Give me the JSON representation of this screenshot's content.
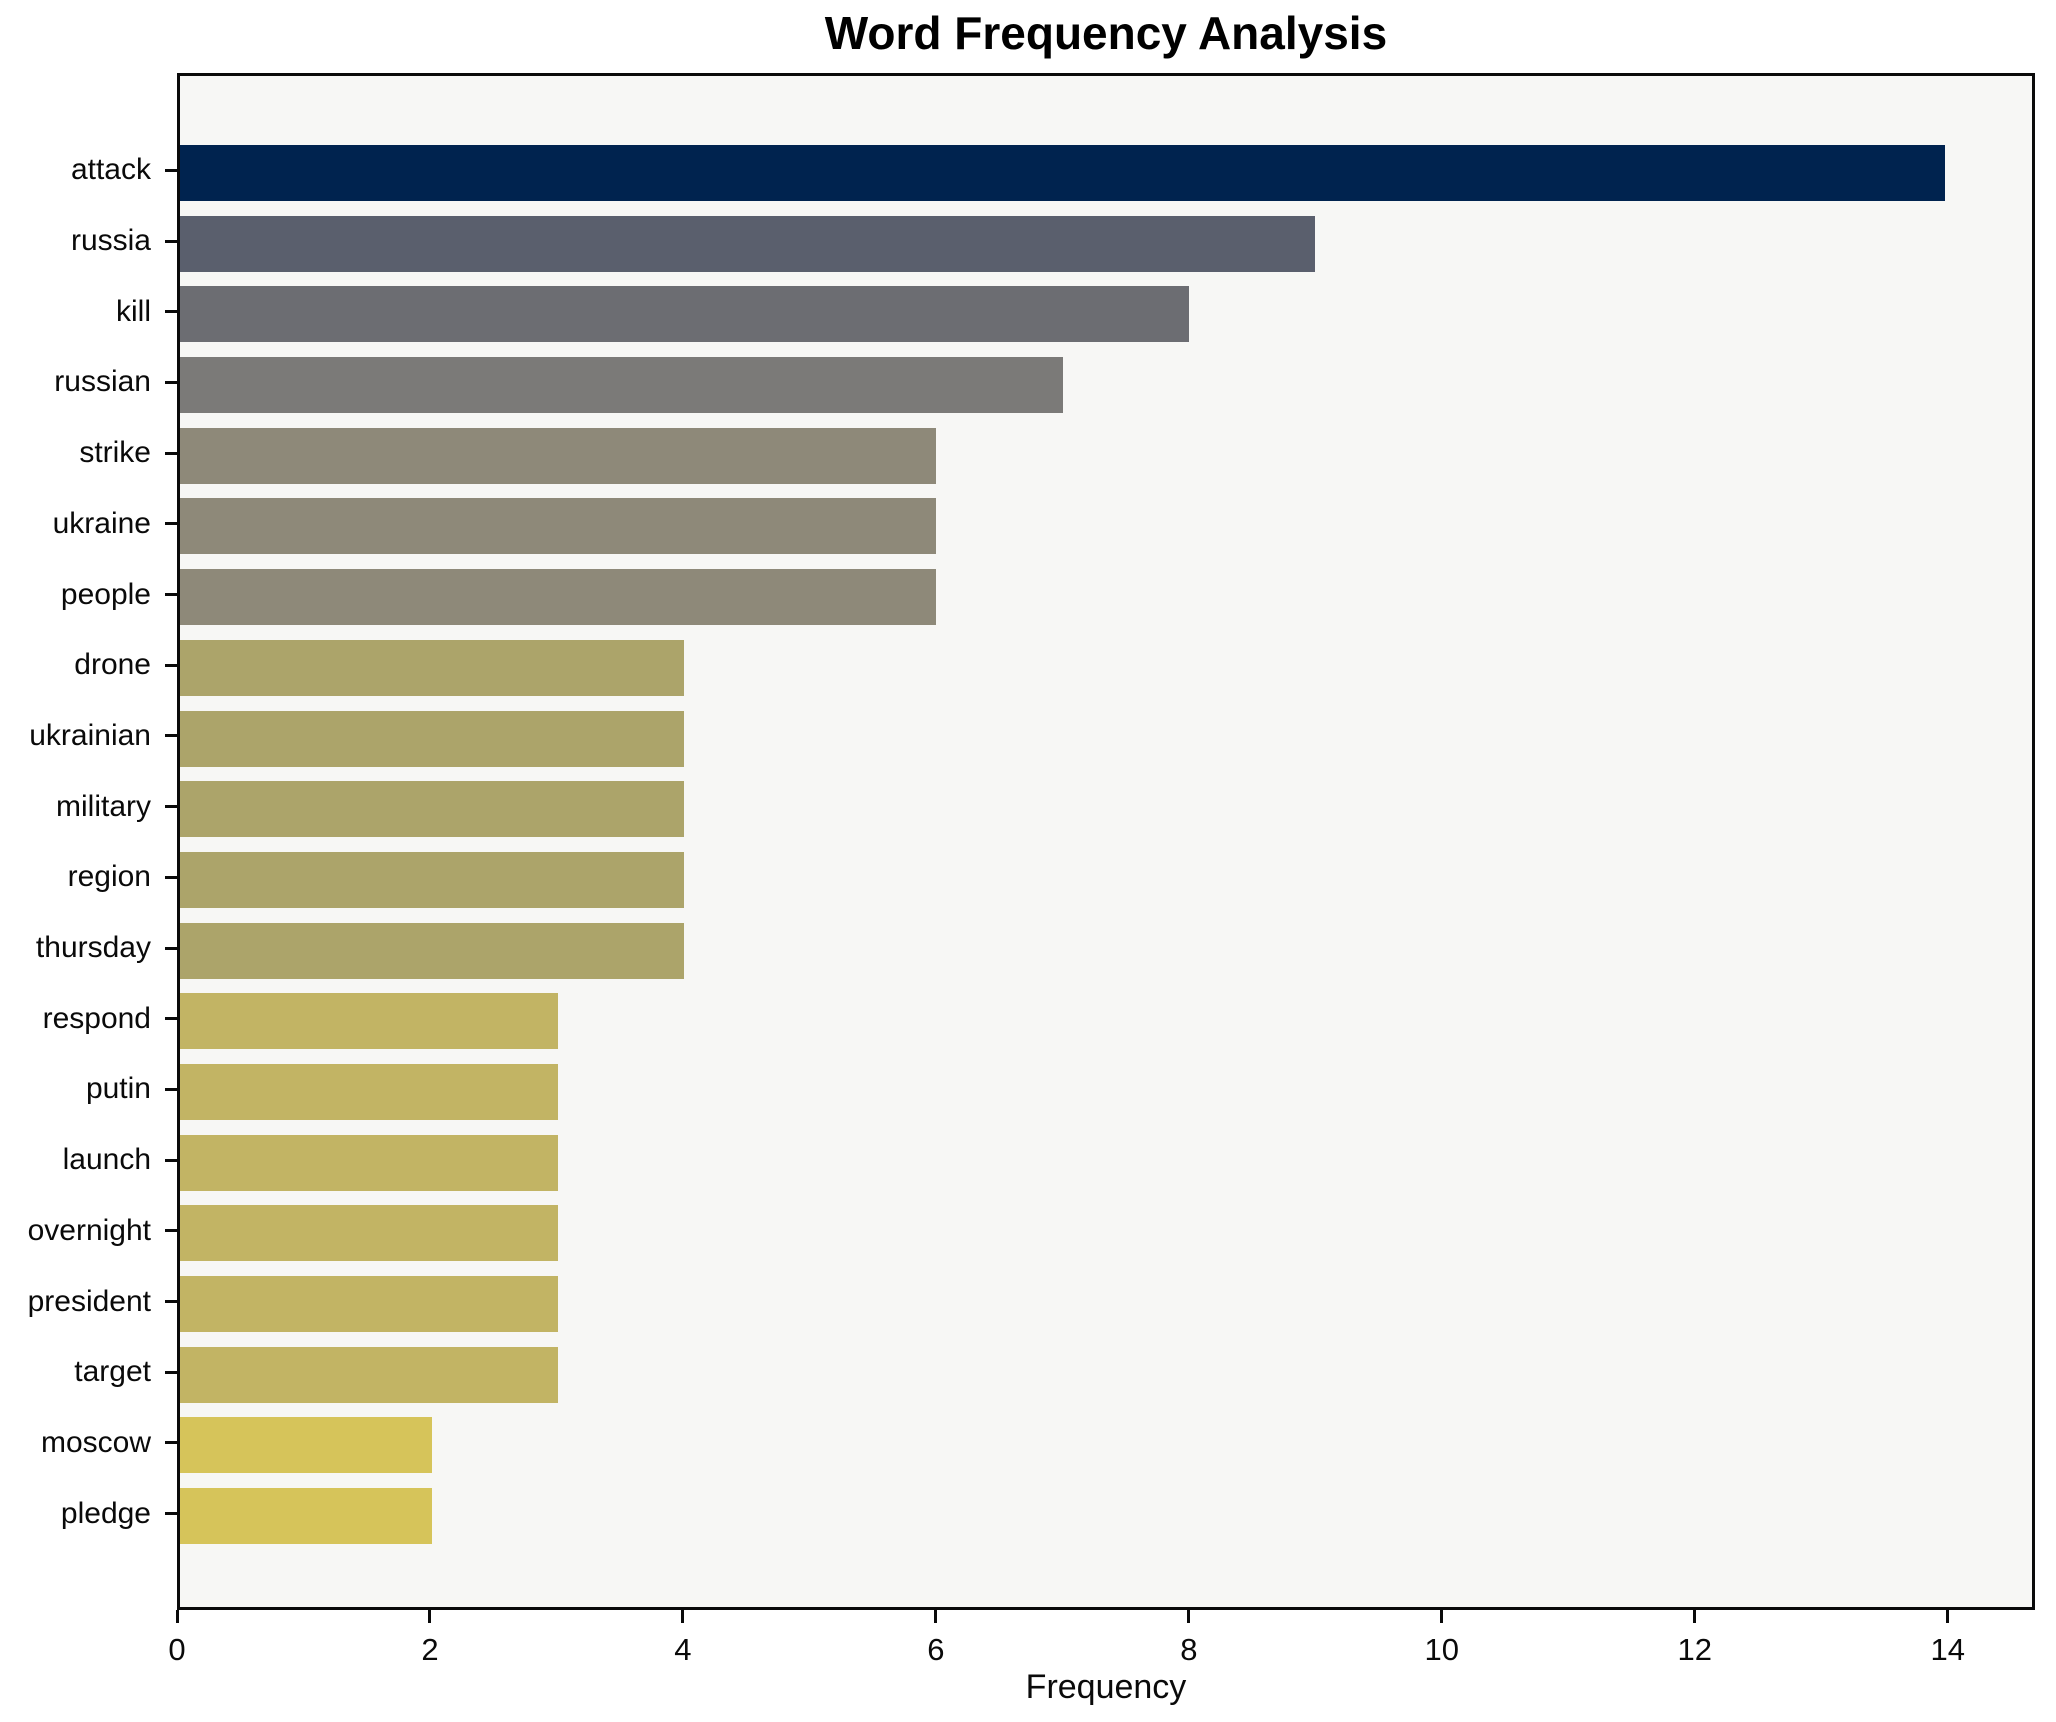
{
  "chart_data": {
    "type": "bar",
    "orientation": "horizontal",
    "title": "Word Frequency Analysis",
    "xlabel": "Frequency",
    "ylabel": "",
    "categories": [
      "attack",
      "russia",
      "kill",
      "russian",
      "strike",
      "ukraine",
      "people",
      "drone",
      "ukrainian",
      "military",
      "region",
      "thursday",
      "respond",
      "putin",
      "launch",
      "overnight",
      "president",
      "target",
      "moscow",
      "pledge"
    ],
    "values": [
      14,
      9,
      8,
      7,
      6,
      6,
      6,
      4,
      4,
      4,
      4,
      4,
      3,
      3,
      3,
      3,
      3,
      3,
      2,
      2
    ],
    "bar_colors": [
      "#00234f",
      "#5a5f6d",
      "#6c6d72",
      "#7b7a78",
      "#8e8979",
      "#8e8979",
      "#8e8979",
      "#aca46a",
      "#aca46a",
      "#aca46a",
      "#aca46a",
      "#aca46a",
      "#c2b464",
      "#c2b464",
      "#c2b464",
      "#c2b464",
      "#c2b464",
      "#c2b464",
      "#d6c45a",
      "#d6c45a"
    ],
    "colors_by_value": {
      "14": "#00234f",
      "9": "#5a5f6d",
      "8": "#6c6d72",
      "7": "#7b7a78",
      "6": "#8e8979",
      "4": "#aca46a",
      "3": "#c2b464",
      "2": "#d6c45a"
    },
    "xlim": [
      0,
      14.69
    ],
    "xticks": [
      0,
      2,
      4,
      6,
      8,
      10,
      12,
      14
    ],
    "grid": false,
    "legend": "none",
    "plot_background": "#f7f7f5",
    "figure_background": "#ffffff",
    "spine_color": "#0a0a0a"
  }
}
